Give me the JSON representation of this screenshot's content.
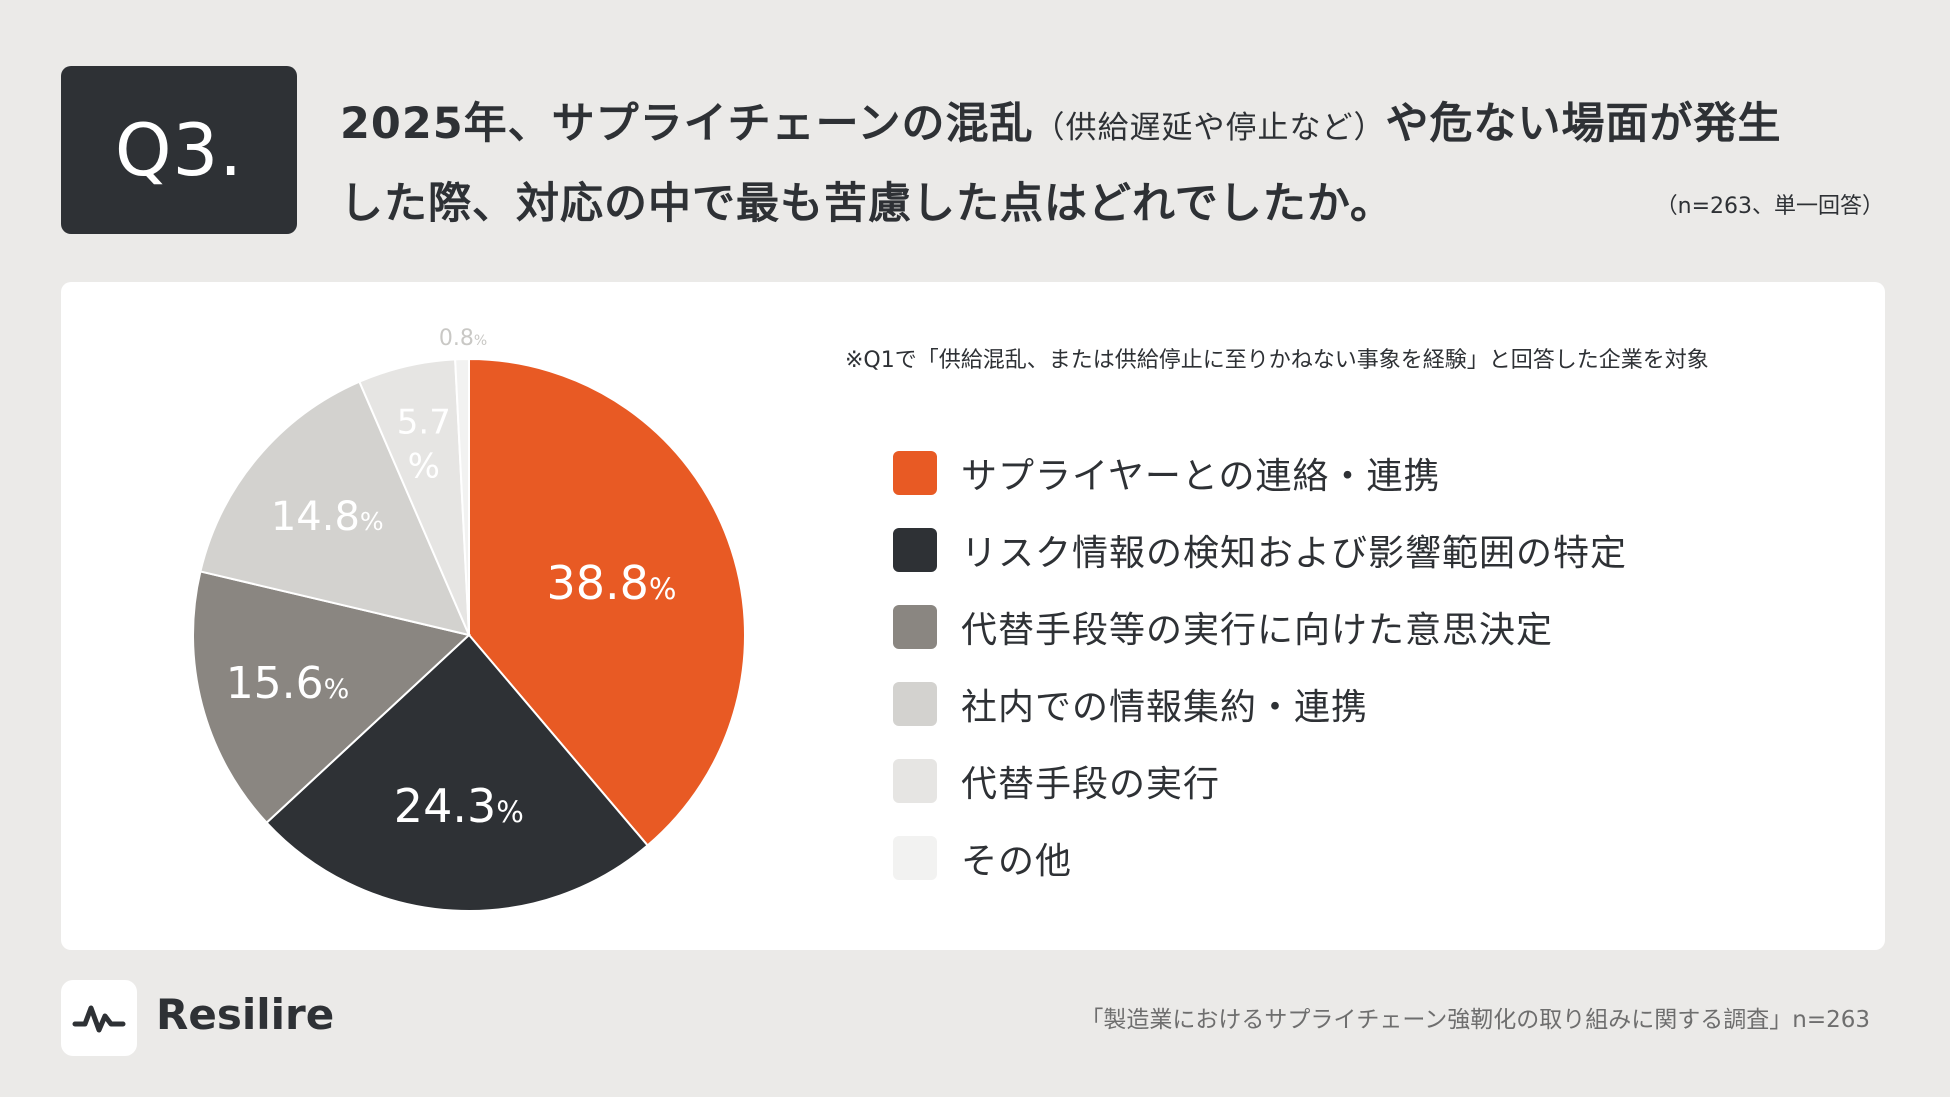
{
  "header": {
    "badge": "Q3.",
    "title_line1_a": "2025年、サプライチェーンの混乱",
    "title_line1_paren": "（供給遅延や停止など）",
    "title_line1_b": "や危ない場面が発生",
    "title_line2": "した際、対応の中で最も苦慮した点はどれでしたか。",
    "sample": "（n=263、単一回答）"
  },
  "note": "※Q1で「供給混乱、または供給停止に至りかねない事象を経験」と回答した企業を対象",
  "footer": {
    "brand": "Resilire",
    "source": "「製造業におけるサプライチェーン強靭化の取り組みに関する調査」n=263"
  },
  "chart_data": {
    "type": "pie",
    "unit": "%",
    "categories": [
      "サプライヤーとの連絡・連携",
      "リスク情報の検知および影響範囲の特定",
      "代替手段等の実行に向けた意思決定",
      "社内での情報集約・連携",
      "代替手段の実行",
      "その他"
    ],
    "values": [
      38.8,
      24.3,
      15.6,
      14.8,
      5.7,
      0.8
    ],
    "labels": [
      "38.8",
      "24.3",
      "15.6",
      "14.8",
      "5.7",
      "0.8"
    ],
    "colors": [
      "#e85a24",
      "#2e3135",
      "#8a8681",
      "#d3d2cf",
      "#e6e5e3",
      "#f2f2f1"
    ],
    "label_colors": [
      "#ffffff",
      "#ffffff",
      "#ffffff",
      "#ffffff",
      "#ffffff",
      "#c9c8c5"
    ],
    "start_angle": "12 o'clock",
    "direction": "clockwise",
    "legend_position": "right"
  }
}
